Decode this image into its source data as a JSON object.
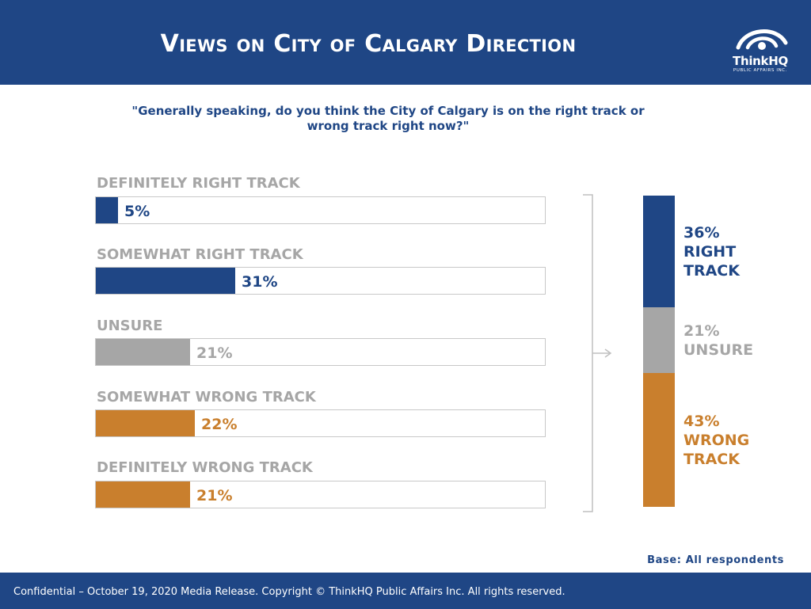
{
  "header": {
    "title": "Views on City of Calgary Direction",
    "logo_name": "ThinkHQ",
    "logo_sub": "PUBLIC AFFAIRS INC."
  },
  "question": "\"Generally speaking, do you think the City of Calgary is on the right track or wrong track right now?\"",
  "colors": {
    "header": "#1f4685",
    "right": "#1f4685",
    "unsure": "#a6a6a6",
    "wrong": "#c97f2d",
    "label": "#a6a6a6"
  },
  "chart_data": [
    {
      "type": "bar",
      "orientation": "horizontal",
      "categories": [
        "DEFINITELY RIGHT TRACK",
        "SOMEWHAT RIGHT TRACK",
        "UNSURE",
        "SOMEWHAT WRONG TRACK",
        "DEFINITELY WRONG TRACK"
      ],
      "values": [
        5,
        31,
        21,
        22,
        21
      ],
      "value_labels": [
        "5%",
        "31%",
        "21%",
        "22%",
        "21%"
      ],
      "bar_colors": [
        "#1f4685",
        "#1f4685",
        "#a6a6a6",
        "#c97f2d",
        "#c97f2d"
      ],
      "xlim": [
        0,
        100
      ]
    },
    {
      "type": "bar",
      "orientation": "stacked-vertical",
      "segments": [
        {
          "value": 36,
          "line1": "36%",
          "line2": "RIGHT",
          "line3": "TRACK",
          "color": "#1f4685"
        },
        {
          "value": 21,
          "line1": "21%",
          "line2": "UNSURE",
          "line3": "",
          "color": "#a6a6a6"
        },
        {
          "value": 43,
          "line1": "43%",
          "line2": "WRONG",
          "line3": "TRACK",
          "color": "#c97f2d"
        }
      ]
    }
  ],
  "base_note": "Base: All respondents",
  "footer": "Confidential – October 19, 2020 Media Release. Copyright © ThinkHQ Public Affairs Inc. All rights reserved."
}
